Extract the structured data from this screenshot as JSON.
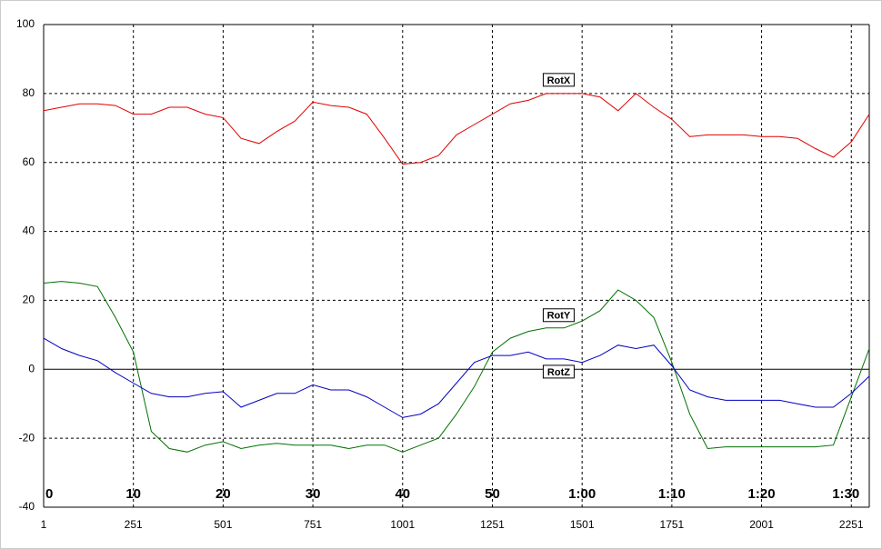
{
  "chart_data": {
    "type": "line",
    "x": [
      1,
      51,
      101,
      151,
      201,
      251,
      301,
      351,
      401,
      451,
      501,
      551,
      601,
      651,
      701,
      751,
      801,
      851,
      901,
      951,
      1001,
      1051,
      1101,
      1151,
      1201,
      1251,
      1301,
      1351,
      1401,
      1451,
      1501,
      1551,
      1601,
      1651,
      1701,
      1751,
      1801,
      1851,
      1901,
      1951,
      2001,
      2051,
      2101,
      2151,
      2201,
      2251,
      2301
    ],
    "series": [
      {
        "name": "RotX",
        "color": "#e00000",
        "values": [
          75,
          76,
          77,
          77,
          76.5,
          74,
          74,
          76,
          76,
          74,
          73,
          67,
          65.5,
          69,
          72,
          77.5,
          76.5,
          76,
          74,
          67,
          59.5,
          60,
          62,
          68,
          71,
          74,
          77,
          78,
          80,
          80,
          80,
          79,
          75,
          80,
          76,
          72.5,
          67.5,
          68,
          68,
          68,
          67.5,
          67.5,
          67,
          64,
          61.5,
          66,
          74
        ]
      },
      {
        "name": "RotY",
        "color": "#007000",
        "values": [
          25,
          25.5,
          25,
          24,
          15,
          5,
          -18,
          -23,
          -24,
          -22,
          -21,
          -23,
          -22,
          -21.5,
          -22,
          -22,
          -22,
          -23,
          -22,
          -22,
          -24,
          -22,
          -20,
          -13,
          -5,
          5,
          9,
          11,
          12,
          12,
          14,
          17,
          23,
          20,
          15,
          2,
          -13,
          -23,
          -22.5,
          -22.5,
          -22.5,
          -22.5,
          -22.5,
          -22.5,
          -22,
          -8,
          6
        ]
      },
      {
        "name": "RotZ",
        "color": "#0000c0",
        "values": [
          9,
          6,
          4,
          2.5,
          -1,
          -4,
          -7,
          -8,
          -8,
          -7,
          -6.5,
          -11,
          -9,
          -7,
          -7,
          -4.5,
          -6,
          -6,
          -8,
          -11,
          -14,
          -13,
          -10,
          -4,
          2,
          4,
          4,
          5,
          3,
          3,
          2,
          4,
          7,
          6,
          7,
          1,
          -6,
          -8,
          -9,
          -9,
          -9,
          -9,
          -10,
          -11,
          -11,
          -7,
          -2
        ]
      }
    ],
    "xlim": [
      1,
      2301
    ],
    "xticks": [
      1,
      251,
      501,
      751,
      1001,
      1251,
      1501,
      1751,
      2001,
      2251
    ],
    "time_labels": [
      "0",
      "10",
      "20",
      "30",
      "40",
      "50",
      "1:00",
      "1:10",
      "1:20",
      "1:30"
    ],
    "ylim": [
      -40,
      100
    ],
    "yticks": [
      -40,
      -20,
      0,
      20,
      40,
      60,
      80,
      100
    ],
    "grid": true
  }
}
